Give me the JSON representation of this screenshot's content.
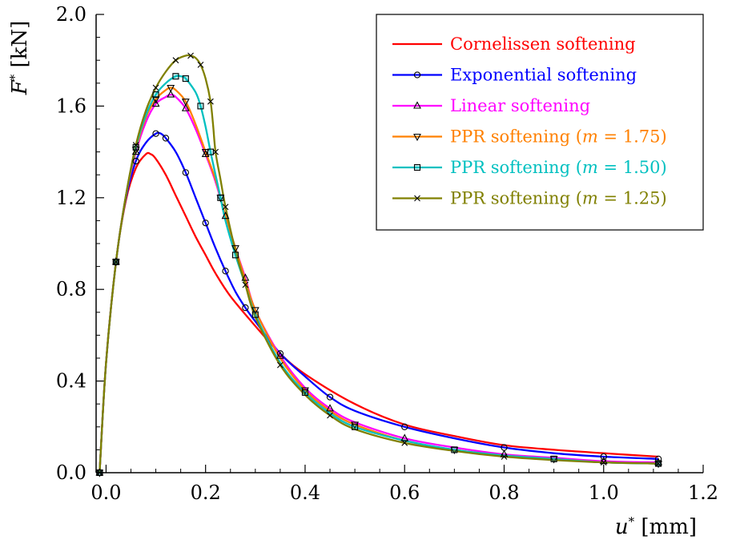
{
  "chart_data": {
    "type": "line",
    "title": "",
    "xlabel": {
      "symbol": "u",
      "sup": "*",
      "unit": " [mm]"
    },
    "ylabel": {
      "symbol": "F",
      "sup": "*",
      "unit": " [kN]"
    },
    "xlim": [
      -0.02,
      1.2
    ],
    "ylim": [
      0.0,
      2.0
    ],
    "xticks": [
      0.0,
      0.2,
      0.4,
      0.6,
      0.8,
      1.0,
      1.2
    ],
    "xtick_labels": [
      "0.0",
      "0.2",
      "0.4",
      "0.6",
      "0.8",
      "1.0",
      "1.2"
    ],
    "yticks": [
      0.0,
      0.4,
      0.8,
      1.2,
      1.6,
      2.0
    ],
    "ytick_labels": [
      "0.0",
      "0.4",
      "0.8",
      "1.2",
      "1.6",
      "2.0"
    ],
    "grid": false,
    "legend_position": "top-right",
    "series": [
      {
        "name": "Cornelissen softening",
        "label": "Cornelissen softening",
        "math": "",
        "color": "#ff0000",
        "marker": "none",
        "x": [
          -0.013,
          0.0,
          0.02,
          0.04,
          0.06,
          0.08,
          0.09,
          0.1,
          0.12,
          0.14,
          0.16,
          0.18,
          0.2,
          0.22,
          0.25,
          0.3,
          0.35,
          0.4,
          0.5,
          0.6,
          0.7,
          0.8,
          0.9,
          1.0,
          1.11
        ],
        "y": [
          0.0,
          0.48,
          0.92,
          1.19,
          1.33,
          1.39,
          1.39,
          1.37,
          1.3,
          1.21,
          1.12,
          1.03,
          0.95,
          0.87,
          0.77,
          0.64,
          0.52,
          0.43,
          0.3,
          0.21,
          0.16,
          0.12,
          0.1,
          0.085,
          0.07
        ]
      },
      {
        "name": "Exponential softening",
        "label": "Exponential softening",
        "math": "",
        "color": "#0000ff",
        "marker": "circle",
        "x": [
          -0.013,
          0.0,
          0.02,
          0.04,
          0.06,
          0.08,
          0.1,
          0.11,
          0.12,
          0.14,
          0.16,
          0.18,
          0.2,
          0.22,
          0.24,
          0.26,
          0.28,
          0.3,
          0.35,
          0.4,
          0.45,
          0.5,
          0.6,
          0.7,
          0.8,
          0.9,
          1.0,
          1.11
        ],
        "y": [
          0.0,
          0.48,
          0.92,
          1.2,
          1.36,
          1.44,
          1.48,
          1.48,
          1.46,
          1.4,
          1.31,
          1.2,
          1.09,
          0.98,
          0.88,
          0.79,
          0.72,
          0.66,
          0.52,
          0.42,
          0.33,
          0.27,
          0.2,
          0.15,
          0.11,
          0.085,
          0.07,
          0.06
        ]
      },
      {
        "name": "Linear softening",
        "label": "Linear softening",
        "math": "",
        "color": "#ff00ff",
        "marker": "triangle-up",
        "x": [
          -0.013,
          0.0,
          0.02,
          0.04,
          0.06,
          0.08,
          0.1,
          0.12,
          0.13,
          0.14,
          0.16,
          0.18,
          0.2,
          0.22,
          0.24,
          0.26,
          0.28,
          0.3,
          0.35,
          0.4,
          0.45,
          0.5,
          0.6,
          0.7,
          0.8,
          0.9,
          1.0,
          1.11
        ],
        "y": [
          0.0,
          0.48,
          0.92,
          1.21,
          1.4,
          1.53,
          1.61,
          1.64,
          1.65,
          1.64,
          1.59,
          1.5,
          1.39,
          1.27,
          1.12,
          0.98,
          0.85,
          0.71,
          0.51,
          0.37,
          0.28,
          0.22,
          0.15,
          0.11,
          0.08,
          0.065,
          0.05,
          0.045
        ]
      },
      {
        "name": "PPR softening (m = 1.75)",
        "label": "PPR softening (",
        "math": "m",
        "math_rest": " = 1.75)",
        "color": "#ff8000",
        "marker": "triangle-down",
        "x": [
          -0.013,
          0.0,
          0.02,
          0.04,
          0.06,
          0.08,
          0.1,
          0.12,
          0.13,
          0.14,
          0.16,
          0.18,
          0.2,
          0.22,
          0.23,
          0.24,
          0.26,
          0.28,
          0.3,
          0.35,
          0.4,
          0.45,
          0.5,
          0.6,
          0.7,
          0.8,
          0.9,
          1.0,
          1.11
        ],
        "y": [
          0.0,
          0.48,
          0.92,
          1.21,
          1.41,
          1.55,
          1.63,
          1.67,
          1.68,
          1.67,
          1.62,
          1.52,
          1.4,
          1.28,
          1.2,
          1.12,
          0.98,
          0.84,
          0.71,
          0.5,
          0.36,
          0.27,
          0.21,
          0.14,
          0.1,
          0.075,
          0.06,
          0.045,
          0.04
        ]
      },
      {
        "name": "PPR softening (m = 1.50)",
        "label": "PPR softening (",
        "math": "m",
        "math_rest": " = 1.50)",
        "color": "#00c0c0",
        "marker": "square",
        "x": [
          -0.013,
          0.0,
          0.02,
          0.04,
          0.06,
          0.08,
          0.1,
          0.12,
          0.14,
          0.15,
          0.16,
          0.18,
          0.19,
          0.2,
          0.21,
          0.22,
          0.23,
          0.24,
          0.26,
          0.28,
          0.3,
          0.35,
          0.4,
          0.45,
          0.5,
          0.6,
          0.7,
          0.8,
          0.9,
          1.0,
          1.11
        ],
        "y": [
          0.0,
          0.48,
          0.92,
          1.21,
          1.42,
          1.56,
          1.65,
          1.7,
          1.73,
          1.73,
          1.72,
          1.66,
          1.6,
          1.51,
          1.4,
          1.3,
          1.2,
          1.1,
          0.95,
          0.82,
          0.69,
          0.48,
          0.35,
          0.26,
          0.2,
          0.14,
          0.1,
          0.075,
          0.06,
          0.045,
          0.04
        ]
      },
      {
        "name": "PPR softening (m = 1.25)",
        "label": "PPR softening (",
        "math": "m",
        "math_rest": " = 1.25)",
        "color": "#808000",
        "marker": "cross",
        "x": [
          -0.013,
          0.0,
          0.02,
          0.04,
          0.06,
          0.08,
          0.1,
          0.12,
          0.14,
          0.16,
          0.17,
          0.18,
          0.19,
          0.2,
          0.21,
          0.215,
          0.22,
          0.23,
          0.24,
          0.26,
          0.28,
          0.3,
          0.35,
          0.4,
          0.45,
          0.5,
          0.6,
          0.7,
          0.8,
          0.9,
          1.0,
          1.11
        ],
        "y": [
          0.0,
          0.48,
          0.92,
          1.21,
          1.43,
          1.58,
          1.68,
          1.75,
          1.8,
          1.82,
          1.82,
          1.81,
          1.78,
          1.72,
          1.62,
          1.52,
          1.4,
          1.28,
          1.16,
          0.97,
          0.82,
          0.68,
          0.47,
          0.34,
          0.25,
          0.19,
          0.13,
          0.095,
          0.07,
          0.055,
          0.045,
          0.04
        ]
      }
    ]
  }
}
